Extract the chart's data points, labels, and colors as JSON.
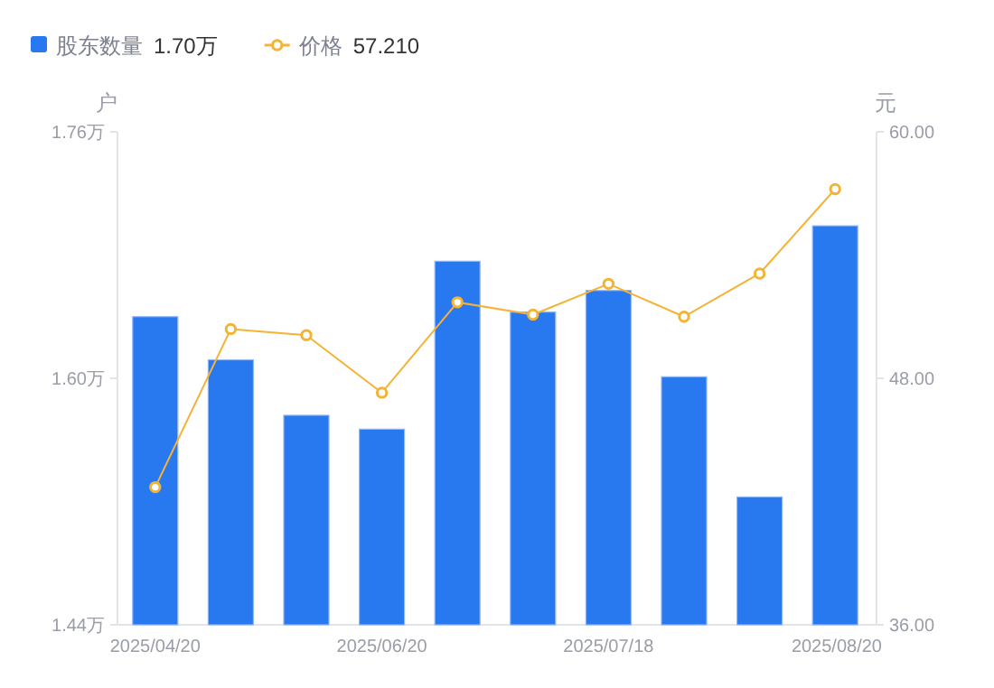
{
  "chart_data": {
    "type": "bar",
    "categories": [
      "2025/04/20",
      null,
      null,
      "2025/06/20",
      null,
      null,
      "2025/07/18",
      null,
      null,
      "2025/08/20"
    ],
    "series": [
      {
        "name": "股东数量",
        "color": "#2878f0",
        "values": [
          1.64,
          1.612,
          1.576,
          1.567,
          1.676,
          1.643,
          1.657,
          1.601,
          1.523,
          1.699
        ]
      },
      {
        "name": "价格",
        "type": "line",
        "axis": "y2",
        "color": "#f5b335",
        "marker": "circle",
        "values": [
          42.7,
          50.4,
          50.1,
          47.3,
          51.7,
          51.1,
          52.6,
          51.0,
          53.1,
          57.21
        ]
      }
    ],
    "ylabel": "户",
    "y2label": "元",
    "ylim": [
      1.44,
      1.76
    ],
    "yticks": [
      {
        "value": 1.44,
        "label": "1.44万"
      },
      {
        "value": 1.6,
        "label": "1.60万"
      },
      {
        "value": 1.76,
        "label": "1.76万"
      }
    ],
    "y2lim": [
      36,
      60
    ],
    "y2ticks": [
      {
        "value": 36,
        "label": "36.00"
      },
      {
        "value": 48,
        "label": "48.00"
      },
      {
        "value": 60,
        "label": "60.00"
      }
    ],
    "annotations": [
      "1.70万",
      "57.210"
    ],
    "legend": "top left",
    "grid": false
  }
}
